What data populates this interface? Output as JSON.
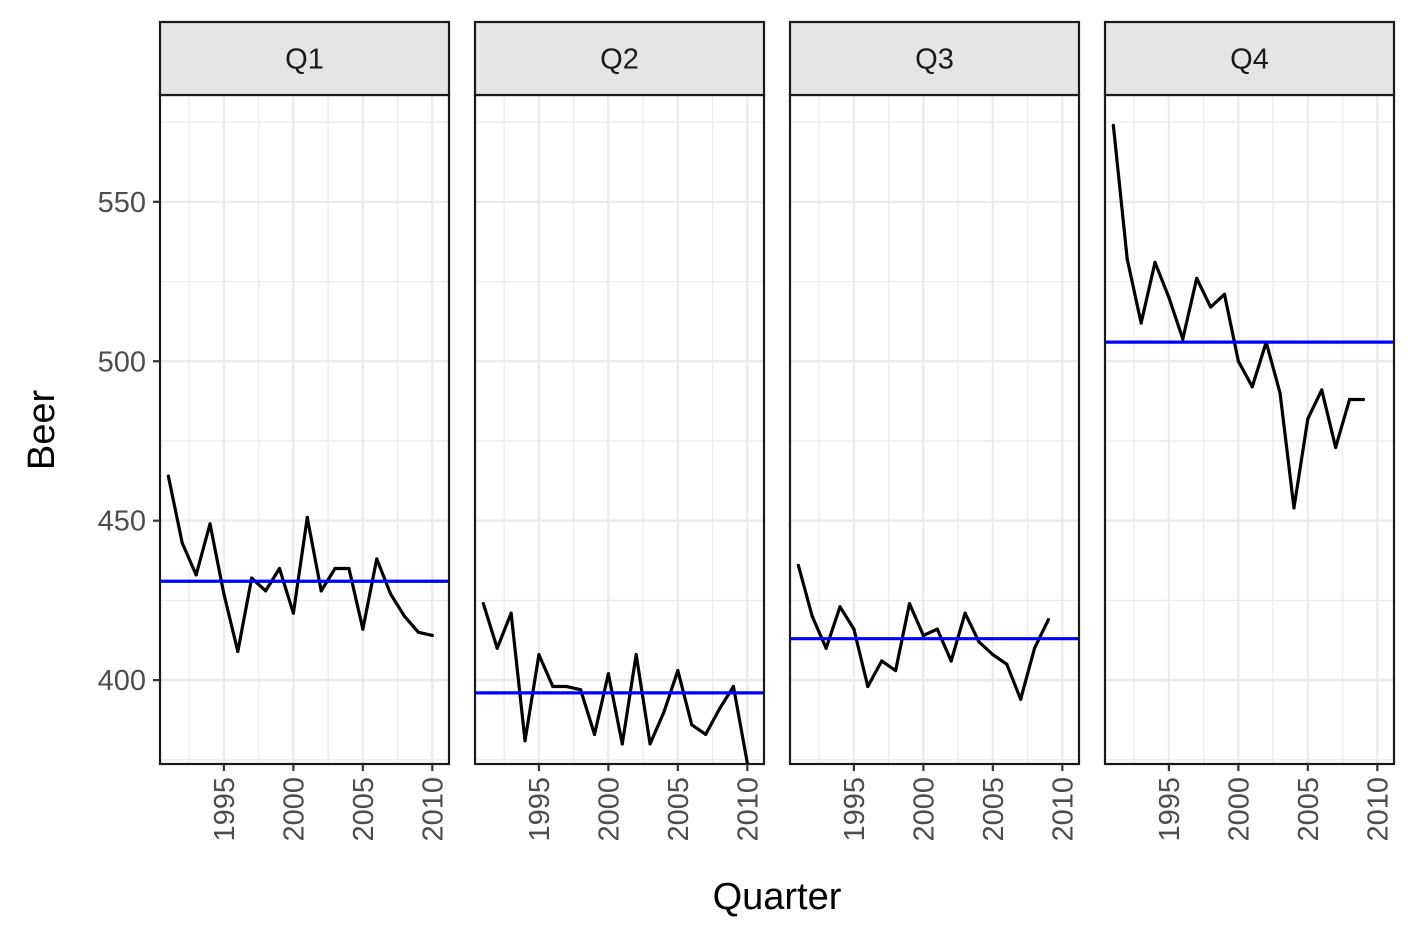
{
  "chart_data": {
    "type": "line",
    "facet": "subseries",
    "xlabel": "Quarter",
    "ylabel": "Beer",
    "ylim": [
      373.7,
      583.5
    ],
    "yticks": [
      400,
      450,
      500,
      550
    ],
    "xlim": [
      1990.4,
      2011.2
    ],
    "xticks": [
      1995,
      2000,
      2005,
      2010
    ],
    "x_minor": [
      1992.5,
      1997.5,
      2002.5,
      2007.5
    ],
    "colors": {
      "series": "#000000",
      "mean_line": "#0000ff",
      "strip_bg": "#e5e5e5",
      "grid": "#ebebeb"
    },
    "panels": [
      {
        "label": "Q1",
        "mean": 431,
        "x": [
          1991,
          1992,
          1993,
          1994,
          1995,
          1996,
          1997,
          1998,
          1999,
          2000,
          2001,
          2002,
          2003,
          2004,
          2005,
          2006,
          2007,
          2008,
          2009,
          2010
        ],
        "values": [
          464,
          443,
          433,
          449,
          427,
          409,
          432,
          428,
          435,
          421,
          451,
          428,
          435,
          435,
          416,
          438,
          427,
          420,
          415,
          414
        ]
      },
      {
        "label": "Q2",
        "mean": 396,
        "x": [
          1991,
          1992,
          1993,
          1994,
          1995,
          1996,
          1997,
          1998,
          1999,
          2000,
          2001,
          2002,
          2003,
          2004,
          2005,
          2006,
          2007,
          2008,
          2009,
          2010
        ],
        "values": [
          424,
          410,
          421,
          381,
          408,
          398,
          398,
          397,
          383,
          402,
          380,
          408,
          380,
          390,
          403,
          386,
          383,
          391,
          398,
          374
        ]
      },
      {
        "label": "Q3",
        "mean": 413,
        "x": [
          1991,
          1992,
          1993,
          1994,
          1995,
          1996,
          1997,
          1998,
          1999,
          2000,
          2001,
          2002,
          2003,
          2004,
          2005,
          2006,
          2007,
          2008,
          2009
        ],
        "values": [
          436,
          420,
          410,
          423,
          416,
          398,
          406,
          403,
          424,
          414,
          416,
          406,
          421,
          412,
          408,
          405,
          394,
          410,
          419
        ]
      },
      {
        "label": "Q4",
        "mean": 506,
        "x": [
          1991,
          1992,
          1993,
          1994,
          1995,
          1996,
          1997,
          1998,
          1999,
          2000,
          2001,
          2002,
          2003,
          2004,
          2005,
          2006,
          2007,
          2008,
          2009
        ],
        "values": [
          574,
          532,
          512,
          531,
          520,
          507,
          526,
          517,
          521,
          500,
          492,
          506,
          490,
          454,
          482,
          491,
          473,
          488,
          488
        ]
      }
    ]
  }
}
